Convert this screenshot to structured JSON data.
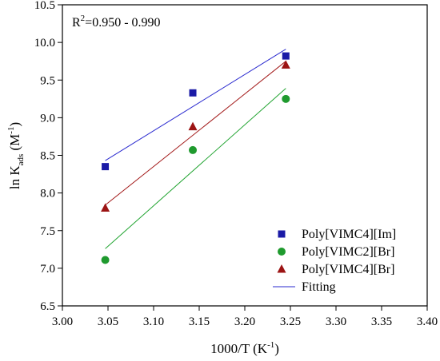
{
  "chart_data": {
    "type": "scatter",
    "title": "",
    "xlabel": {
      "main": "1000/T (K",
      "sup": "-1",
      "end": ")"
    },
    "ylabel": {
      "main": "ln K",
      "sub": "ads",
      "unit_open": " (M",
      "unit_sup": "-1",
      "unit_close": ")"
    },
    "xlim": [
      3.0,
      3.4
    ],
    "ylim": [
      6.5,
      10.5
    ],
    "xticks": [
      "3.00",
      "3.05",
      "3.10",
      "3.15",
      "3.20",
      "3.25",
      "3.30",
      "3.35",
      "3.40"
    ],
    "yticks": [
      "6.5",
      "7.0",
      "7.5",
      "8.0",
      "8.5",
      "9.0",
      "9.5",
      "10.0",
      "10.5"
    ],
    "grid": false,
    "legend_position": "bottom-right",
    "annotation": {
      "prefix": "R",
      "sup": "2",
      "text": "=0.950 - 0.990"
    },
    "series": [
      {
        "name": "Poly[VIMC4][Im]",
        "marker": "square",
        "color": "#1a1aa6",
        "line_color": "#2a2acf",
        "x": [
          3.047,
          3.143,
          3.245
        ],
        "y": [
          8.35,
          9.33,
          9.82
        ],
        "fit": [
          [
            3.047,
            8.43
          ],
          [
            3.245,
            9.91
          ]
        ]
      },
      {
        "name": "Poly[VIMC2][Br]",
        "marker": "circle",
        "color": "#1f9a2e",
        "line_color": "#1fa32f",
        "x": [
          3.047,
          3.143,
          3.245
        ],
        "y": [
          7.11,
          8.57,
          9.25
        ],
        "fit": [
          [
            3.047,
            7.26
          ],
          [
            3.245,
            9.39
          ]
        ]
      },
      {
        "name": "Poly[VIMC4][Br]",
        "marker": "triangle",
        "color": "#9c1414",
        "line_color": "#a31b1b",
        "x": [
          3.047,
          3.143,
          3.245
        ],
        "y": [
          7.8,
          8.88,
          9.7
        ],
        "fit": [
          [
            3.047,
            7.84
          ],
          [
            3.245,
            9.75
          ]
        ]
      }
    ],
    "fit_legend": {
      "name": "Fitting",
      "color": "#2a2acf"
    }
  }
}
